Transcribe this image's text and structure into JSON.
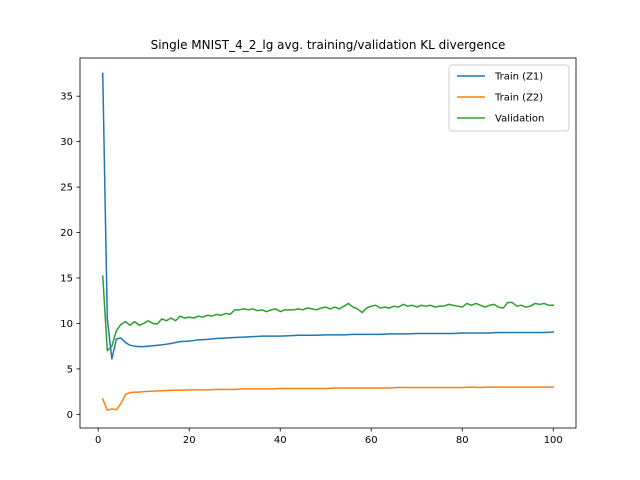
{
  "chart_data": {
    "type": "line",
    "title": "Single MNIST_4_2_lg avg. training/validation KL divergence",
    "xlabel": "",
    "ylabel": "",
    "xlim": [
      -4,
      105
    ],
    "ylim": [
      -1.5,
      39.2
    ],
    "xticks": [
      0,
      20,
      40,
      60,
      80,
      100
    ],
    "yticks": [
      0,
      5,
      10,
      15,
      20,
      25,
      30,
      35
    ],
    "legend_position": "top-right",
    "grid": false,
    "series": [
      {
        "name": "Train (Z1)",
        "color": "#1f77b4",
        "x": [
          1,
          2,
          3,
          4,
          5,
          6,
          7,
          8,
          9,
          10,
          12,
          14,
          16,
          18,
          20,
          22,
          24,
          26,
          28,
          30,
          32,
          34,
          36,
          38,
          40,
          42,
          44,
          46,
          48,
          50,
          52,
          54,
          56,
          58,
          60,
          62,
          64,
          66,
          68,
          70,
          72,
          74,
          76,
          78,
          80,
          82,
          84,
          86,
          88,
          90,
          92,
          94,
          96,
          98,
          100
        ],
        "y": [
          37.5,
          10.5,
          6.1,
          8.3,
          8.4,
          7.9,
          7.6,
          7.5,
          7.45,
          7.45,
          7.55,
          7.65,
          7.8,
          8.0,
          8.05,
          8.2,
          8.25,
          8.35,
          8.4,
          8.45,
          8.5,
          8.55,
          8.6,
          8.6,
          8.6,
          8.65,
          8.7,
          8.7,
          8.7,
          8.75,
          8.75,
          8.75,
          8.8,
          8.8,
          8.8,
          8.8,
          8.85,
          8.85,
          8.85,
          8.9,
          8.9,
          8.9,
          8.9,
          8.9,
          8.95,
          8.95,
          8.95,
          8.95,
          9.0,
          9.0,
          9.0,
          9.0,
          9.0,
          9.0,
          9.05
        ]
      },
      {
        "name": "Train (Z2)",
        "color": "#ff7f0e",
        "x": [
          1,
          2,
          3,
          4,
          5,
          6,
          7,
          8,
          9,
          10,
          12,
          14,
          16,
          18,
          20,
          22,
          24,
          26,
          28,
          30,
          32,
          34,
          36,
          38,
          40,
          42,
          44,
          46,
          48,
          50,
          52,
          54,
          56,
          58,
          60,
          62,
          64,
          66,
          68,
          70,
          72,
          74,
          76,
          78,
          80,
          82,
          84,
          86,
          88,
          90,
          92,
          94,
          96,
          98,
          100
        ],
        "y": [
          1.7,
          0.45,
          0.6,
          0.5,
          1.2,
          2.2,
          2.4,
          2.45,
          2.45,
          2.5,
          2.55,
          2.6,
          2.65,
          2.65,
          2.7,
          2.7,
          2.7,
          2.75,
          2.75,
          2.75,
          2.8,
          2.8,
          2.8,
          2.8,
          2.85,
          2.85,
          2.85,
          2.85,
          2.85,
          2.85,
          2.9,
          2.9,
          2.9,
          2.9,
          2.9,
          2.9,
          2.9,
          2.95,
          2.95,
          2.95,
          2.95,
          2.95,
          2.95,
          2.95,
          2.95,
          3.0,
          2.95,
          3.0,
          3.0,
          3.0,
          3.0,
          3.0,
          3.0,
          3.0,
          3.0
        ]
      },
      {
        "name": "Validation",
        "color": "#2ca02c",
        "x": [
          1,
          2,
          3,
          4,
          5,
          6,
          7,
          8,
          9,
          10,
          11,
          12,
          13,
          14,
          15,
          16,
          17,
          18,
          19,
          20,
          21,
          22,
          23,
          24,
          25,
          26,
          27,
          28,
          29,
          30,
          31,
          32,
          33,
          34,
          35,
          36,
          37,
          38,
          39,
          40,
          41,
          42,
          43,
          44,
          45,
          46,
          47,
          48,
          49,
          50,
          51,
          52,
          53,
          54,
          55,
          56,
          57,
          58,
          59,
          60,
          61,
          62,
          63,
          64,
          65,
          66,
          67,
          68,
          69,
          70,
          71,
          72,
          73,
          74,
          75,
          76,
          77,
          78,
          79,
          80,
          81,
          82,
          83,
          84,
          85,
          86,
          87,
          88,
          89,
          90,
          91,
          92,
          93,
          94,
          95,
          96,
          97,
          98,
          99,
          100
        ],
        "y": [
          15.2,
          7.0,
          7.5,
          9.2,
          9.9,
          10.2,
          9.8,
          10.2,
          9.8,
          10.0,
          10.3,
          10.0,
          9.95,
          10.5,
          10.3,
          10.6,
          10.3,
          10.8,
          10.6,
          10.7,
          10.6,
          10.8,
          10.7,
          10.9,
          10.8,
          11.0,
          10.9,
          11.1,
          11.0,
          11.5,
          11.5,
          11.6,
          11.5,
          11.6,
          11.4,
          11.5,
          11.3,
          11.5,
          11.6,
          11.3,
          11.5,
          11.5,
          11.5,
          11.6,
          11.5,
          11.7,
          11.6,
          11.5,
          11.7,
          11.8,
          11.6,
          11.8,
          11.6,
          11.9,
          12.2,
          11.8,
          11.6,
          11.2,
          11.7,
          11.9,
          12.0,
          11.7,
          11.8,
          11.7,
          11.9,
          11.8,
          12.1,
          11.9,
          12.0,
          11.8,
          12.0,
          11.9,
          12.0,
          11.8,
          11.9,
          11.9,
          12.1,
          12.0,
          11.9,
          11.8,
          12.2,
          12.0,
          12.2,
          12.0,
          11.8,
          12.0,
          12.1,
          11.8,
          11.7,
          12.3,
          12.3,
          11.9,
          12.0,
          11.8,
          11.9,
          12.2,
          12.1,
          12.2,
          12.0,
          12.0
        ]
      }
    ]
  }
}
